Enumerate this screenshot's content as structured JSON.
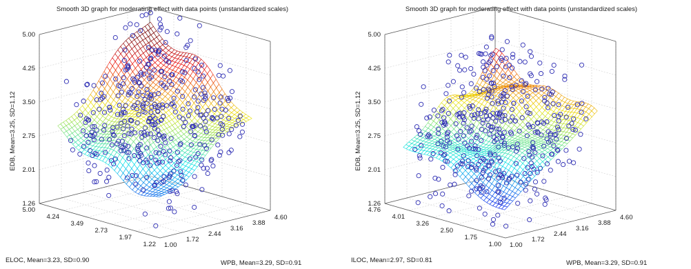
{
  "chart_data": [
    {
      "type": "surface3d",
      "title": "Smooth 3D graph for moderating effect with data points (unstandardized scales)",
      "zlabel": "EDB, Mean=3.25, SD=1.12",
      "xlabel": "WPB, Mean=3.29, SD=0.91",
      "ylabel": "ELOC, Mean=3.23, SD=0.90",
      "x_ticks": [
        "1.00",
        "1.72",
        "2.44",
        "3.16",
        "3.88",
        "4.60"
      ],
      "y_ticks": [
        "1.22",
        "1.97",
        "2.73",
        "3.49",
        "4.24",
        "5.00"
      ],
      "z_ticks": [
        "1.26",
        "2.01",
        "2.75",
        "3.50",
        "4.25",
        "5.00"
      ],
      "xlim": [
        1.0,
        4.6
      ],
      "ylim": [
        1.22,
        5.0
      ],
      "zlim": [
        1.26,
        5.0
      ],
      "surface": "rises toward high WPB and high ELOC",
      "grid": true,
      "series": [
        {
          "kind": "surface",
          "colormap": "jet"
        },
        {
          "kind": "scatter",
          "marker": "circle",
          "color": "#2b2bb3"
        }
      ],
      "colors": {
        "points": "#2b2bb3"
      }
    },
    {
      "type": "surface3d",
      "title": "Smooth 3D graph for moderating effect with data points (unstandardized scales)",
      "zlabel": "EDB, Mean=3.25, SD=1.12",
      "xlabel": "WPB, Mean=3.29, SD=0.91",
      "ylabel": "ILOC, Mean=2.97, SD=0.81",
      "x_ticks": [
        "1.00",
        "1.72",
        "2.44",
        "3.16",
        "3.88",
        "4.60"
      ],
      "y_ticks": [
        "1.00",
        "1.75",
        "2.50",
        "3.26",
        "4.01",
        "4.76"
      ],
      "z_ticks": [
        "1.26",
        "2.01",
        "2.75",
        "3.50",
        "4.25",
        "5.00"
      ],
      "xlim": [
        1.0,
        4.6
      ],
      "ylim": [
        1.0,
        4.76
      ],
      "zlim": [
        1.26,
        5.0
      ],
      "surface": "rises toward high WPB, flattening at high ILOC",
      "grid": true,
      "series": [
        {
          "kind": "surface",
          "colormap": "jet"
        },
        {
          "kind": "scatter",
          "marker": "circle",
          "color": "#2b2bb3"
        }
      ],
      "colors": {
        "points": "#2b2bb3"
      }
    }
  ]
}
